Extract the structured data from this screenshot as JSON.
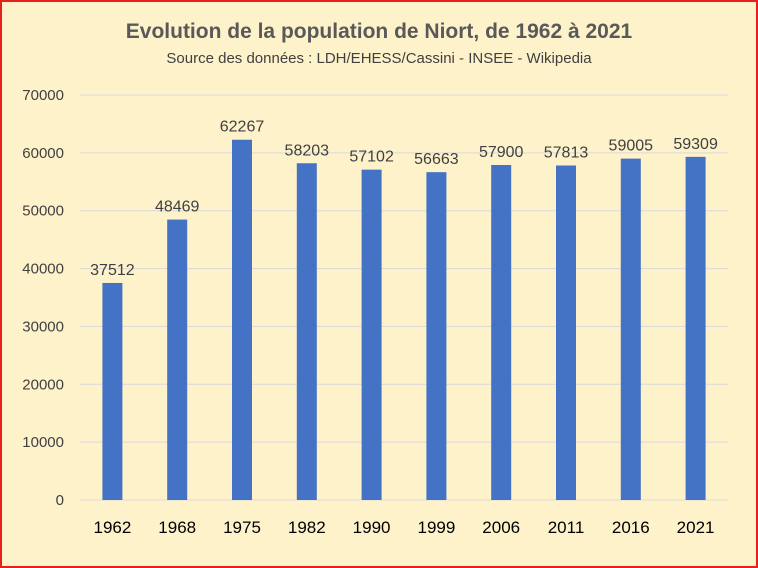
{
  "chart_data": {
    "type": "bar",
    "title": "Evolution de la population de Niort, de 1962 à 2021",
    "subtitle": "Source des données :  LDH/EHESS/Cassini - INSEE - Wikipedia",
    "categories": [
      "1962",
      "1968",
      "1975",
      "1982",
      "1990",
      "1999",
      "2006",
      "2011",
      "2016",
      "2021"
    ],
    "values": [
      37512,
      48469,
      62267,
      58203,
      57102,
      56663,
      57900,
      57813,
      59005,
      59309
    ],
    "xlabel": "",
    "ylabel": "",
    "ylim": [
      0,
      70000
    ],
    "yticks": [
      0,
      10000,
      20000,
      30000,
      40000,
      50000,
      60000,
      70000
    ],
    "grid": true,
    "data_labels": true,
    "colors": {
      "bar": "#4472c4",
      "background": "#fef2cb",
      "border": "#e8201c",
      "grid": "#d9d9d9"
    }
  }
}
